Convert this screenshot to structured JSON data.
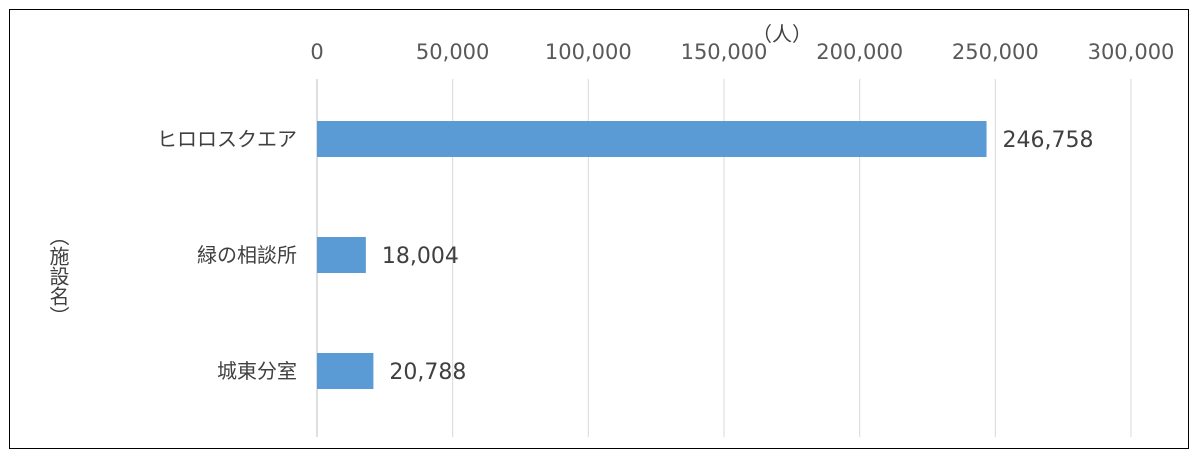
{
  "chart_data": {
    "type": "bar",
    "orientation": "horizontal",
    "categories": [
      "ヒロロスクエア",
      "緑の相談所",
      "城東分室"
    ],
    "values": [
      246758,
      18004,
      20788
    ],
    "value_labels": [
      "246,758",
      "18,004",
      "20,788"
    ],
    "x_ticks": [
      "0",
      "50,000",
      "100,000",
      "150,000",
      "200,000",
      "250,000",
      "300,000"
    ],
    "xlim": [
      0,
      300000
    ],
    "xlabel": "（人）",
    "ylabel": "（施設名）",
    "title": "",
    "grid": true,
    "legend": "none",
    "axis_position": "top",
    "bar_color": "#5b9bd5",
    "grid_color": "#d9d9d9"
  }
}
